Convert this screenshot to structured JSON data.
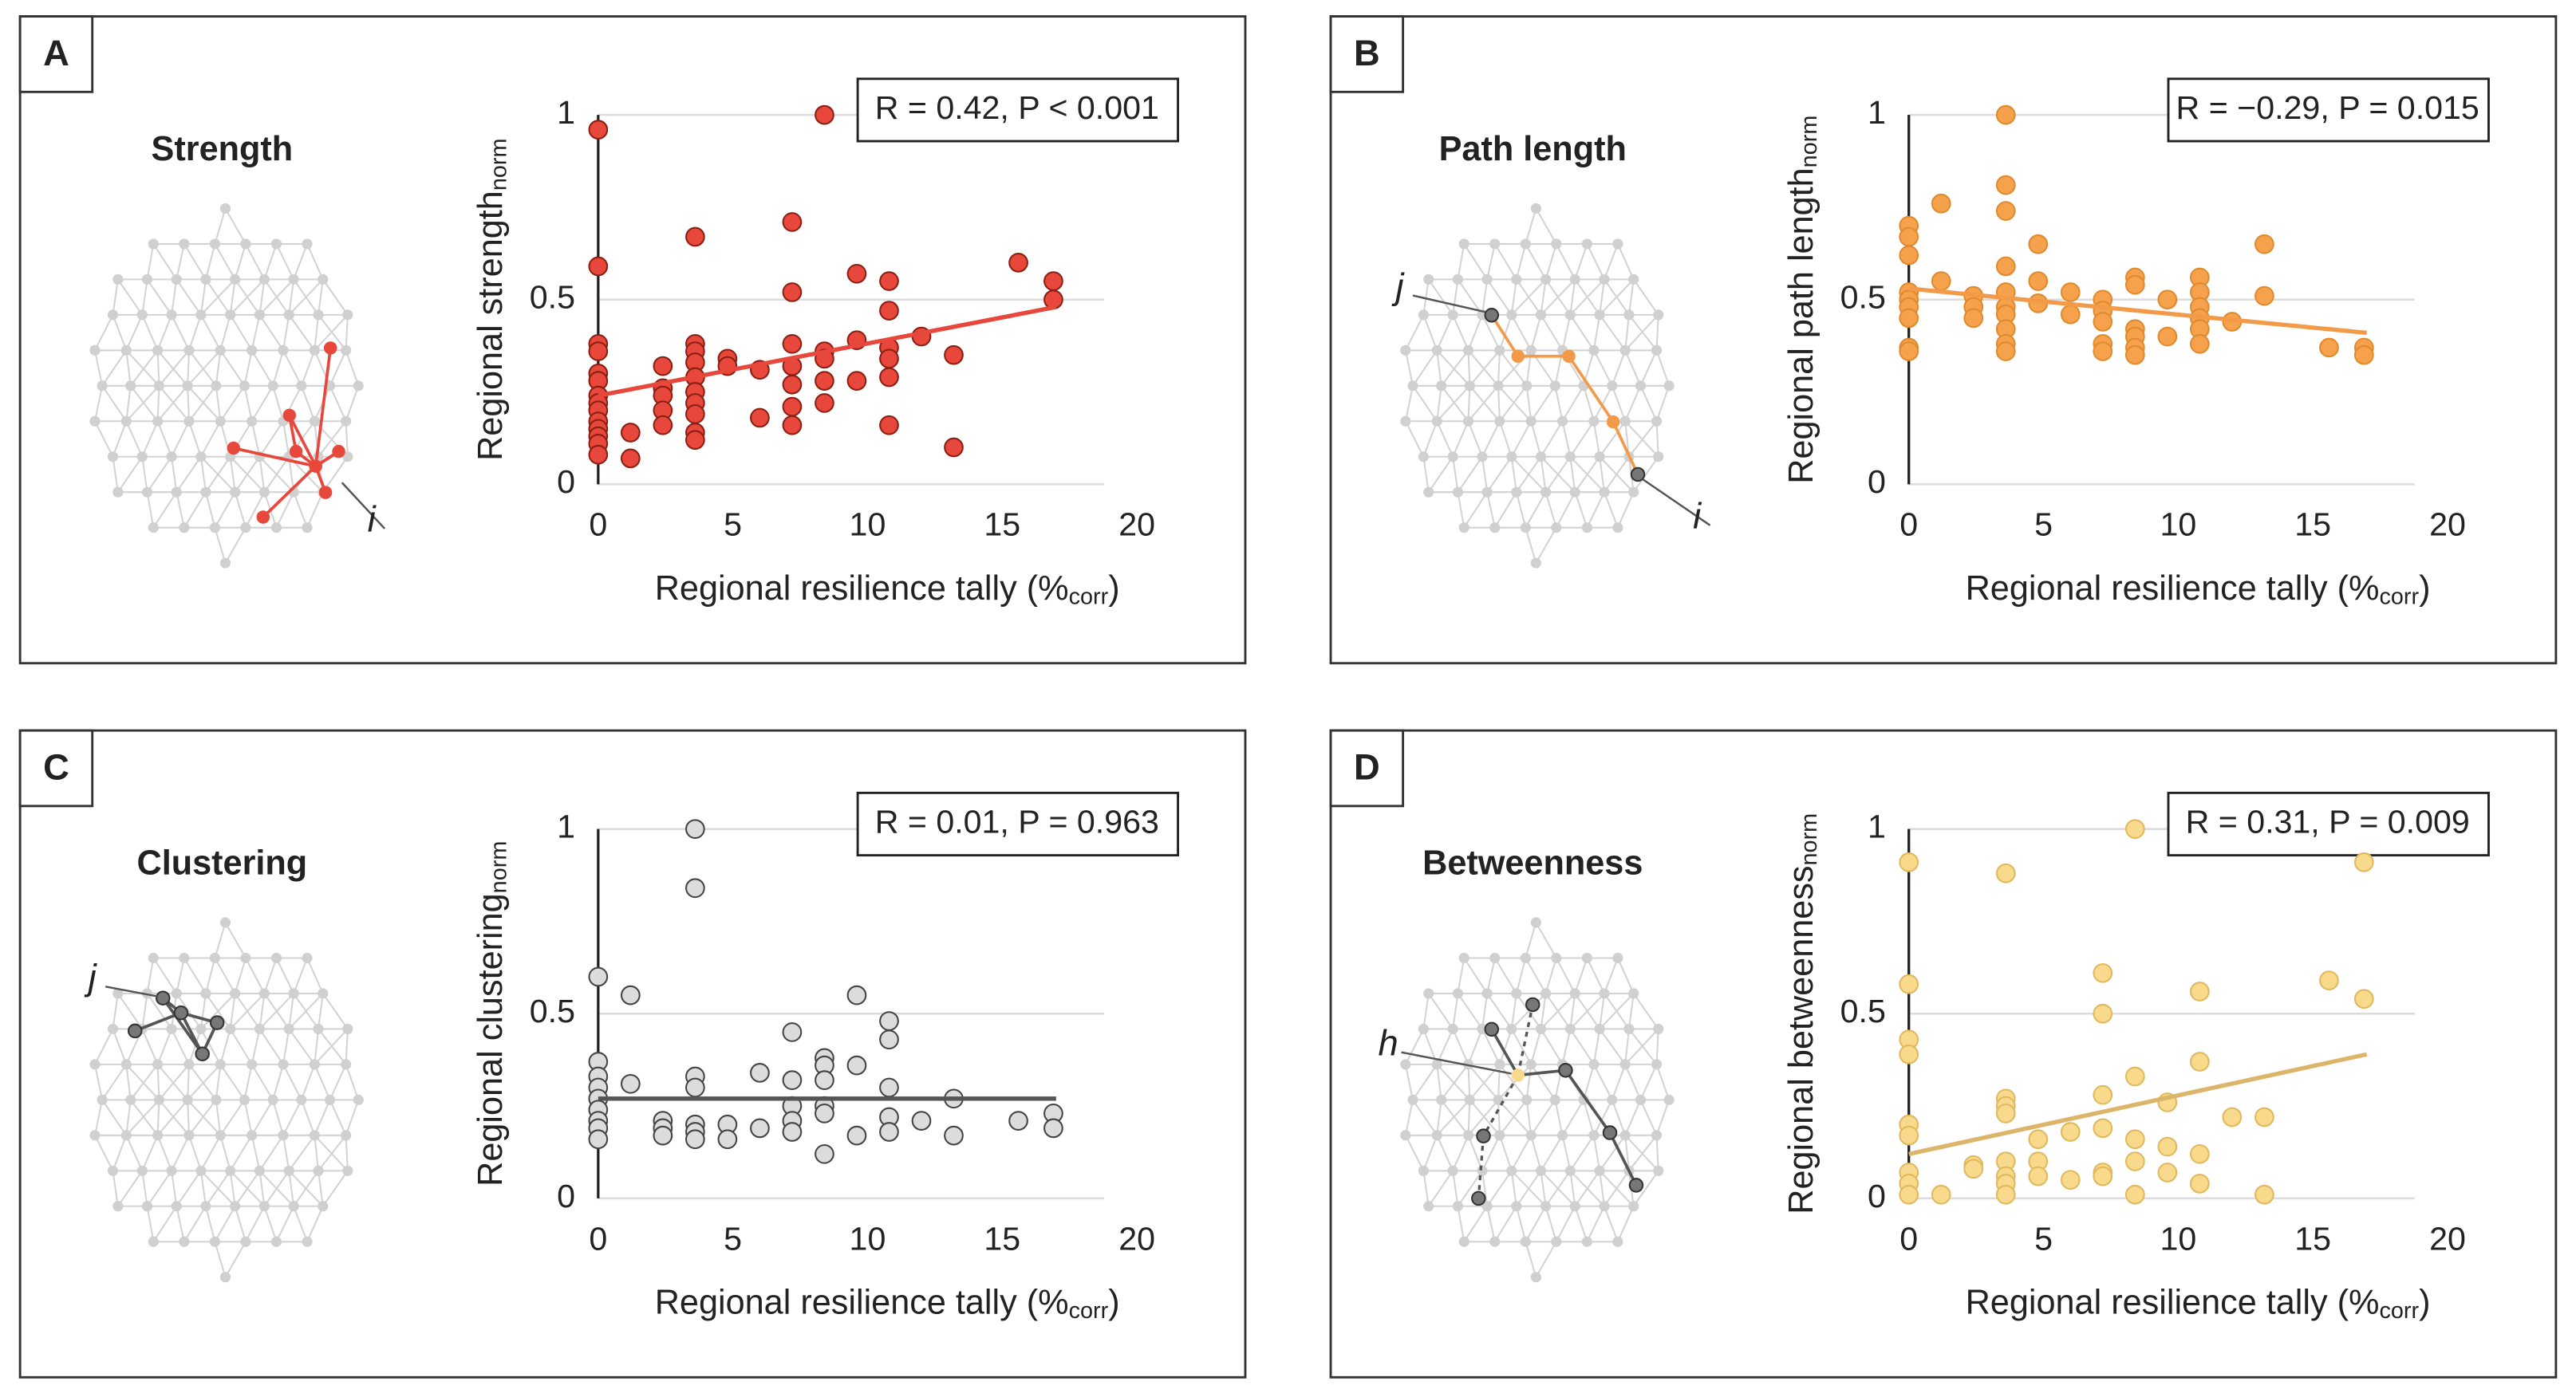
{
  "chart_data": [
    {
      "type": "scatter",
      "panel": "A",
      "network_title": "Strength",
      "node_labels": [
        "i"
      ],
      "annotation": "R = 0.42, P < 0.001",
      "y_label": "Regional strength",
      "y_label_sub": "norm",
      "x_label": [
        "Regional resilience tally (%",
        "corr",
        ")"
      ],
      "color": "#e8473b",
      "edge_color": "#8a1f14",
      "fit_color": "#e8473b",
      "xlim": [
        0,
        20
      ],
      "ylim": [
        0,
        1
      ],
      "xticks": [
        0,
        5,
        10,
        15,
        20
      ],
      "yticks": [
        0,
        0.5,
        1
      ],
      "grid": true,
      "x": [
        0,
        0,
        0,
        0,
        0,
        0,
        0,
        0,
        0,
        0,
        0,
        0,
        0,
        0,
        1.2,
        1.2,
        2.4,
        2.4,
        2.4,
        2.4,
        2.4,
        3.6,
        3.6,
        3.6,
        3.6,
        3.6,
        3.6,
        3.6,
        3.6,
        3.6,
        3.6,
        4.8,
        4.8,
        6,
        6,
        7.2,
        7.2,
        7.2,
        7.2,
        7.2,
        7.2,
        7.2,
        8.4,
        8.4,
        8.4,
        8.4,
        8.4,
        9.6,
        9.6,
        9.6,
        10.8,
        10.8,
        10.8,
        10.8,
        10.8,
        10.8,
        12,
        13.2,
        13.2,
        15.6,
        16.9,
        16.9
      ],
      "values": [
        0.96,
        0.59,
        0.38,
        0.36,
        0.3,
        0.28,
        0.24,
        0.22,
        0.2,
        0.17,
        0.15,
        0.13,
        0.11,
        0.08,
        0.14,
        0.07,
        0.32,
        0.26,
        0.24,
        0.2,
        0.16,
        0.67,
        0.38,
        0.36,
        0.33,
        0.29,
        0.25,
        0.22,
        0.19,
        0.14,
        0.12,
        0.34,
        0.32,
        0.31,
        0.18,
        0.71,
        0.52,
        0.38,
        0.32,
        0.27,
        0.21,
        0.16,
        1.0,
        0.36,
        0.34,
        0.28,
        0.22,
        0.57,
        0.39,
        0.28,
        0.55,
        0.47,
        0.37,
        0.34,
        0.29,
        0.16,
        0.4,
        0.35,
        0.1,
        0.6,
        0.55,
        0.5
      ],
      "fit": {
        "x": [
          0,
          17
        ],
        "values": [
          0.24,
          0.48
        ]
      }
    },
    {
      "type": "scatter",
      "panel": "B",
      "network_title": "Path length",
      "node_labels": [
        "j",
        "i"
      ],
      "annotation": "R = −0.29, P = 0.015",
      "y_label": "Regional path length",
      "y_label_sub": "norm",
      "x_label": [
        "Regional resilience tally (%",
        "corr",
        ")"
      ],
      "color": "#f6a24c",
      "edge_color": "#e08a2e",
      "fit_color": "#f39a48",
      "xlim": [
        0,
        20
      ],
      "ylim": [
        0,
        1
      ],
      "xticks": [
        0,
        5,
        10,
        15,
        20
      ],
      "yticks": [
        0,
        0.5,
        1
      ],
      "grid": true,
      "x": [
        0,
        0,
        0,
        0,
        0,
        0,
        0,
        0,
        0,
        1.2,
        1.2,
        2.4,
        2.4,
        2.4,
        3.6,
        3.6,
        3.6,
        3.6,
        3.6,
        3.6,
        3.6,
        3.6,
        3.6,
        3.6,
        4.8,
        4.8,
        4.8,
        6,
        6,
        7.2,
        7.2,
        7.2,
        7.2,
        7.2,
        8.4,
        8.4,
        8.4,
        8.4,
        8.4,
        8.4,
        9.6,
        9.6,
        10.8,
        10.8,
        10.8,
        10.8,
        10.8,
        10.8,
        12,
        13.2,
        13.2,
        15.6,
        16.9,
        16.9
      ],
      "values": [
        0.7,
        0.67,
        0.62,
        0.52,
        0.5,
        0.48,
        0.45,
        0.37,
        0.36,
        0.76,
        0.55,
        0.51,
        0.48,
        0.45,
        1.0,
        0.81,
        0.74,
        0.59,
        0.52,
        0.48,
        0.46,
        0.42,
        0.38,
        0.36,
        0.65,
        0.55,
        0.49,
        0.52,
        0.46,
        0.5,
        0.47,
        0.44,
        0.38,
        0.36,
        0.56,
        0.54,
        0.42,
        0.4,
        0.37,
        0.35,
        0.5,
        0.4,
        0.56,
        0.52,
        0.48,
        0.45,
        0.42,
        0.38,
        0.44,
        0.65,
        0.51,
        0.37,
        0.37,
        0.35
      ],
      "fit": {
        "x": [
          0,
          17
        ],
        "values": [
          0.53,
          0.41
        ]
      }
    },
    {
      "type": "scatter",
      "panel": "C",
      "network_title": "Clustering",
      "node_labels": [
        "j"
      ],
      "annotation": "R = 0.01, P = 0.963",
      "y_label": "Regional clustering",
      "y_label_sub": "norm",
      "x_label": [
        "Regional resilience tally (%",
        "corr",
        ")"
      ],
      "color": "#dcdcdc",
      "edge_color": "#444444",
      "fit_color": "#555555",
      "xlim": [
        0,
        20
      ],
      "ylim": [
        0,
        1
      ],
      "xticks": [
        0,
        5,
        10,
        15,
        20
      ],
      "yticks": [
        0,
        0.5,
        1
      ],
      "grid": true,
      "x": [
        0,
        0,
        0,
        0,
        0,
        0,
        0,
        0,
        0,
        1.2,
        1.2,
        2.4,
        2.4,
        2.4,
        3.6,
        3.6,
        3.6,
        3.6,
        3.6,
        3.6,
        3.6,
        4.8,
        4.8,
        6,
        6,
        7.2,
        7.2,
        7.2,
        7.2,
        7.2,
        8.4,
        8.4,
        8.4,
        8.4,
        8.4,
        8.4,
        9.6,
        9.6,
        9.6,
        10.8,
        10.8,
        10.8,
        10.8,
        10.8,
        12,
        13.2,
        13.2,
        15.6,
        16.9,
        16.9
      ],
      "values": [
        0.6,
        0.37,
        0.33,
        0.3,
        0.27,
        0.24,
        0.21,
        0.19,
        0.16,
        0.55,
        0.31,
        0.21,
        0.19,
        0.17,
        1.0,
        0.84,
        0.33,
        0.3,
        0.2,
        0.18,
        0.16,
        0.2,
        0.16,
        0.34,
        0.19,
        0.45,
        0.32,
        0.25,
        0.21,
        0.18,
        0.38,
        0.36,
        0.32,
        0.25,
        0.23,
        0.12,
        0.55,
        0.36,
        0.17,
        0.48,
        0.43,
        0.3,
        0.22,
        0.18,
        0.21,
        0.27,
        0.17,
        0.21,
        0.23,
        0.19
      ],
      "fit": {
        "x": [
          0,
          17
        ],
        "values": [
          0.27,
          0.27
        ]
      }
    },
    {
      "type": "scatter",
      "panel": "D",
      "network_title": "Betweenness",
      "node_labels": [
        "h"
      ],
      "annotation": "R = 0.31, P = 0.009",
      "y_label": "Regional betweenness",
      "y_label_sub": "norm",
      "x_label": [
        "Regional resilience tally (%",
        "corr",
        ")"
      ],
      "color": "#f9d98c",
      "edge_color": "#e0b95e",
      "fit_color": "#ddb56a",
      "xlim": [
        0,
        20
      ],
      "ylim": [
        0,
        1
      ],
      "xticks": [
        0,
        5,
        10,
        15,
        20
      ],
      "yticks": [
        0,
        0.5,
        1
      ],
      "grid": true,
      "x": [
        0,
        0,
        0,
        0,
        0,
        0,
        0,
        0,
        0,
        1.2,
        2.4,
        2.4,
        3.6,
        3.6,
        3.6,
        3.6,
        3.6,
        3.6,
        3.6,
        3.6,
        4.8,
        4.8,
        4.8,
        6,
        6,
        7.2,
        7.2,
        7.2,
        7.2,
        7.2,
        7.2,
        8.4,
        8.4,
        8.4,
        8.4,
        8.4,
        9.6,
        9.6,
        9.6,
        10.8,
        10.8,
        10.8,
        10.8,
        12,
        13.2,
        13.2,
        15.6,
        16.9,
        16.9
      ],
      "values": [
        0.91,
        0.58,
        0.43,
        0.39,
        0.2,
        0.17,
        0.07,
        0.04,
        0.01,
        0.01,
        0.09,
        0.08,
        0.88,
        0.27,
        0.25,
        0.23,
        0.1,
        0.06,
        0.04,
        0.01,
        0.16,
        0.1,
        0.06,
        0.18,
        0.05,
        0.61,
        0.5,
        0.28,
        0.19,
        0.07,
        0.06,
        1.0,
        0.33,
        0.16,
        0.1,
        0.01,
        0.26,
        0.14,
        0.07,
        0.56,
        0.37,
        0.12,
        0.04,
        0.22,
        0.22,
        0.01,
        0.59,
        0.91,
        0.54
      ],
      "fit": {
        "x": [
          0,
          17
        ],
        "values": [
          0.12,
          0.39
        ]
      }
    }
  ]
}
